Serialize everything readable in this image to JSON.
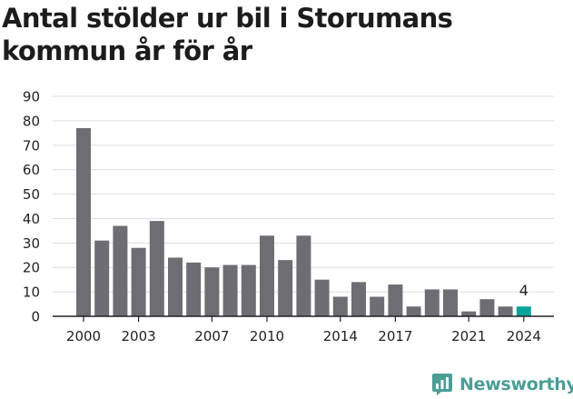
{
  "title": "Antal stölder ur bil i Storumans kommun år för år",
  "brand": {
    "name": "Newsworthy",
    "icon": "newsworthy-logo-icon"
  },
  "colors": {
    "bar": "#6e6d73",
    "highlight": "#0aa39a",
    "grid": "#dedede",
    "axis": "#222222",
    "brand": "#4a9e96"
  },
  "chart_data": {
    "type": "bar",
    "title": "Antal stölder ur bil i Storumans kommun år för år",
    "xlabel": "",
    "ylabel": "",
    "categories": [
      2000,
      2001,
      2002,
      2003,
      2004,
      2005,
      2006,
      2007,
      2008,
      2009,
      2010,
      2011,
      2012,
      2013,
      2014,
      2015,
      2016,
      2017,
      2018,
      2019,
      2020,
      2021,
      2022,
      2023,
      2024
    ],
    "values": [
      77,
      31,
      37,
      28,
      39,
      24,
      22,
      20,
      21,
      21,
      33,
      23,
      33,
      15,
      8,
      14,
      8,
      13,
      4,
      11,
      11,
      2,
      7,
      4,
      4
    ],
    "x_tick_labels": [
      "2000",
      "2003",
      "2007",
      "2010",
      "2014",
      "2017",
      "2021",
      "2024"
    ],
    "y_ticks": [
      0,
      10,
      20,
      30,
      40,
      50,
      60,
      70,
      80,
      90
    ],
    "ylim": [
      0,
      90
    ],
    "grid": true,
    "highlight": {
      "category": 2024,
      "label": "4"
    }
  }
}
